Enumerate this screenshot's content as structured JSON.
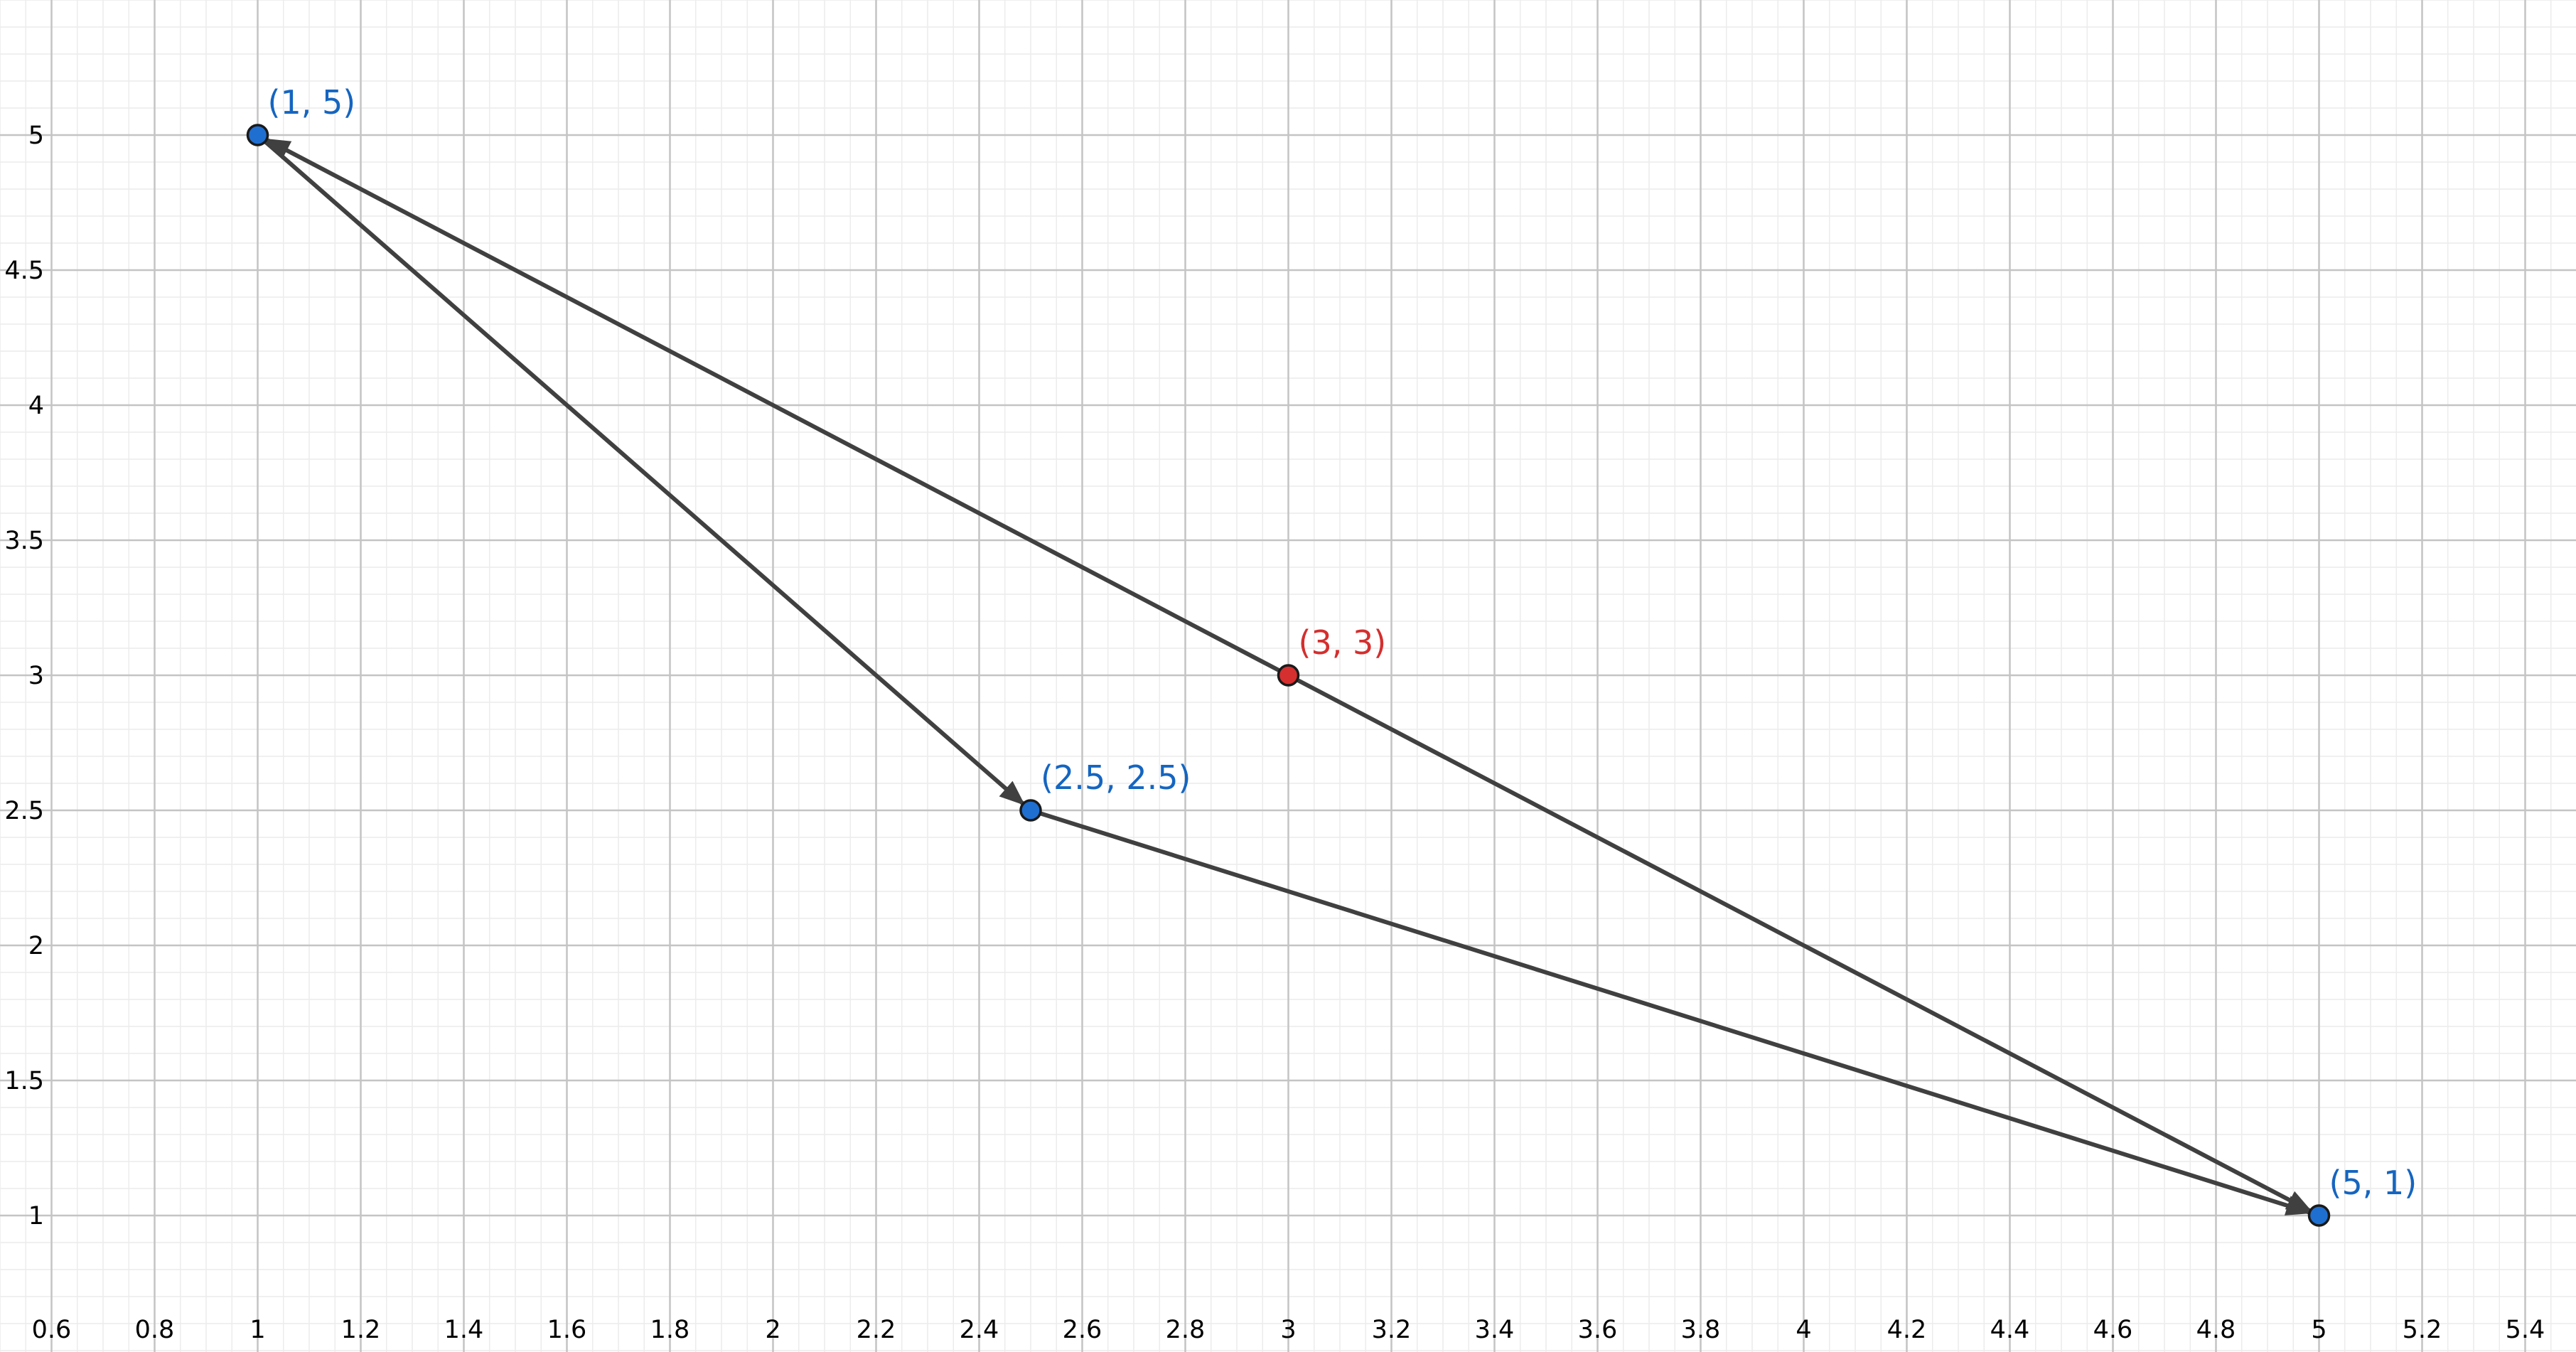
{
  "graph": {
    "x_axis": {
      "min": 0.5,
      "max": 5.5,
      "major_step": 0.2,
      "tick_labels": [
        "0.6",
        "0.8",
        "1",
        "1.2",
        "1.4",
        "1.6",
        "1.8",
        "2",
        "2.2",
        "2.4",
        "2.6",
        "2.8",
        "3",
        "3.2",
        "3.4",
        "3.6",
        "3.8",
        "4",
        "4.2",
        "4.4",
        "4.6",
        "4.8",
        "5",
        "5.2",
        "5.4"
      ]
    },
    "y_axis": {
      "min": 0.75,
      "max": 5.25,
      "major_step": 0.5,
      "tick_labels": [
        "1",
        "1.5",
        "2",
        "2.5",
        "3",
        "3.5",
        "4",
        "4.5",
        "5"
      ]
    },
    "grid": {
      "major": true,
      "minor": true
    },
    "points": [
      {
        "id": "A",
        "x": 1,
        "y": 5,
        "label": "(1, 5)",
        "color": "#1565c0",
        "fill": "#1f6fd1"
      },
      {
        "id": "B",
        "x": 2.5,
        "y": 2.5,
        "label": "(2.5, 2.5)",
        "color": "#1565c0",
        "fill": "#1f6fd1"
      },
      {
        "id": "C",
        "x": 5,
        "y": 1,
        "label": "(5, 1)",
        "color": "#1565c0",
        "fill": "#1f6fd1"
      },
      {
        "id": "D",
        "x": 3,
        "y": 3,
        "label": "(3, 3)",
        "color": "#d32f2f",
        "fill": "#d62f2f"
      }
    ],
    "vectors": [
      {
        "from": [
          1,
          5
        ],
        "to": [
          2.5,
          2.5
        ]
      },
      {
        "from": [
          2.5,
          2.5
        ],
        "to": [
          5,
          1
        ]
      },
      {
        "from": [
          3,
          3
        ],
        "to": [
          5,
          1
        ]
      },
      {
        "from": [
          3,
          3
        ],
        "to": [
          1,
          5
        ]
      }
    ],
    "vector_color": "#404040"
  }
}
